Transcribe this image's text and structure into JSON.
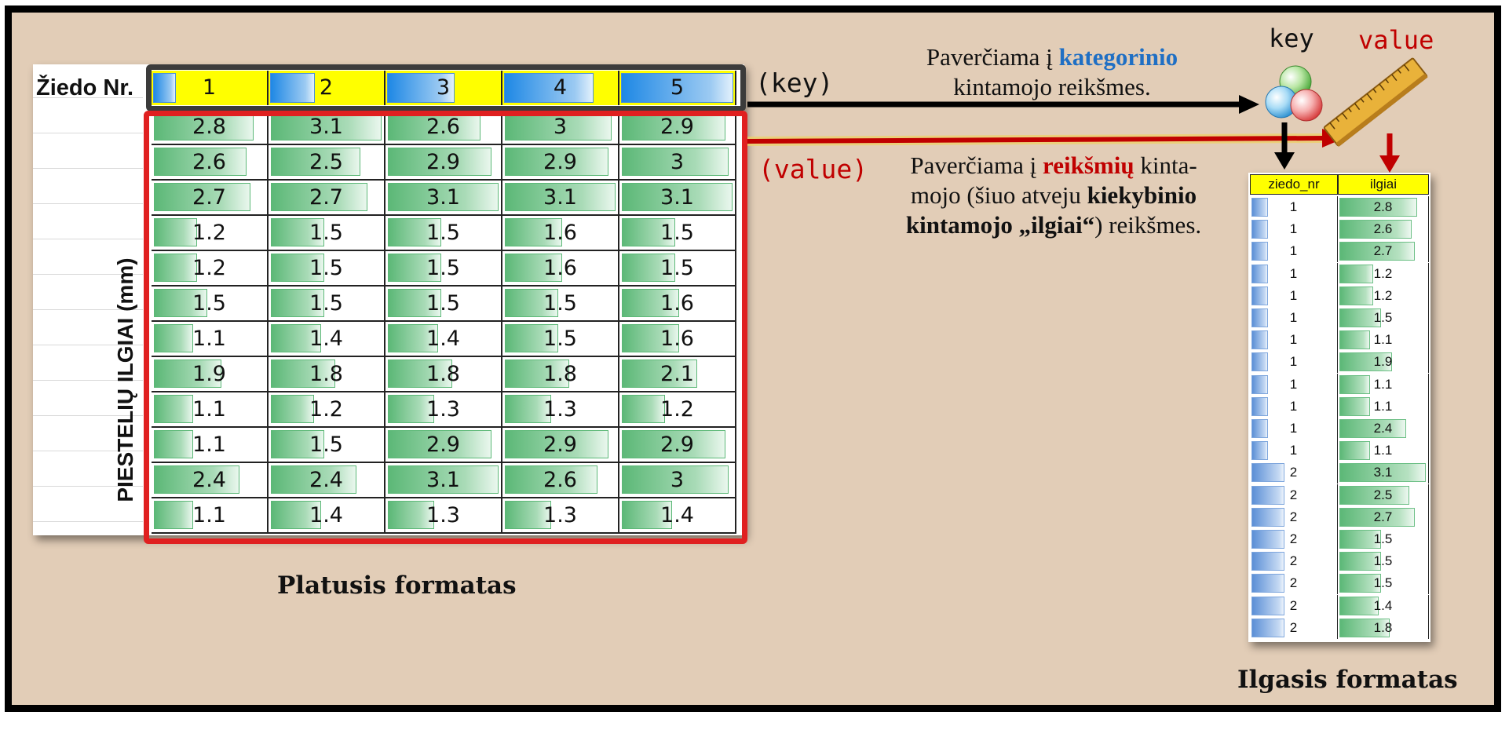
{
  "wide_table": {
    "corner_label": "Žiedo Nr.",
    "row_axis_label": "PIESTELIŲ ILGIAI (mm)",
    "header": [
      "1",
      "2",
      "3",
      "4",
      "5"
    ],
    "header_bar_fraction": [
      0.2,
      0.4,
      0.6,
      0.8,
      1.0
    ],
    "rows": [
      [
        "2.8",
        "3.1",
        "2.6",
        "3",
        "2.9"
      ],
      [
        "2.6",
        "2.5",
        "2.9",
        "2.9",
        "3"
      ],
      [
        "2.7",
        "2.7",
        "3.1",
        "3.1",
        "3.1"
      ],
      [
        "1.2",
        "1.5",
        "1.5",
        "1.6",
        "1.5"
      ],
      [
        "1.2",
        "1.5",
        "1.5",
        "1.6",
        "1.5"
      ],
      [
        "1.5",
        "1.5",
        "1.5",
        "1.5",
        "1.6"
      ],
      [
        "1.1",
        "1.4",
        "1.4",
        "1.5",
        "1.6"
      ],
      [
        "1.9",
        "1.8",
        "1.8",
        "1.8",
        "2.1"
      ],
      [
        "1.1",
        "1.2",
        "1.3",
        "1.3",
        "1.2"
      ],
      [
        "1.1",
        "1.5",
        "2.9",
        "2.9",
        "2.9"
      ],
      [
        "2.4",
        "2.4",
        "3.1",
        "2.6",
        "3"
      ],
      [
        "1.1",
        "1.4",
        "1.3",
        "1.3",
        "1.4"
      ]
    ],
    "caption": "Platusis formatas"
  },
  "labels": {
    "key_paren": "(key)",
    "value_paren": "(value)",
    "key_word": "key",
    "value_word": "value"
  },
  "annotation_top": {
    "line1_pre": "Paverčiama į ",
    "line1_em": "kategorinio",
    "line2": "kintamojo reikšmes."
  },
  "annotation_bottom": {
    "l1_pre": "Paverčiama į ",
    "l1_em": "reikšmių",
    "l1_post": " kinta-",
    "l2_pre": "mojo (šiuo atveju ",
    "l2_bold": "kiekybinio",
    "l3_bold": "kintamojo „ilgiai“",
    "l3_post": ") reikšmes."
  },
  "long_table": {
    "headers": [
      "ziedo_nr",
      "ilgiai"
    ],
    "rows": [
      [
        "1",
        "2.8"
      ],
      [
        "1",
        "2.6"
      ],
      [
        "1",
        "2.7"
      ],
      [
        "1",
        "1.2"
      ],
      [
        "1",
        "1.2"
      ],
      [
        "1",
        "1.5"
      ],
      [
        "1",
        "1.1"
      ],
      [
        "1",
        "1.9"
      ],
      [
        "1",
        "1.1"
      ],
      [
        "1",
        "1.1"
      ],
      [
        "1",
        "2.4"
      ],
      [
        "1",
        "1.1"
      ],
      [
        "2",
        "3.1"
      ],
      [
        "2",
        "2.5"
      ],
      [
        "2",
        "2.7"
      ],
      [
        "2",
        "1.5"
      ],
      [
        "2",
        "1.5"
      ],
      [
        "2",
        "1.5"
      ],
      [
        "2",
        "1.4"
      ],
      [
        "2",
        "1.8"
      ]
    ],
    "caption": "Ilgasis formatas"
  },
  "colors": {
    "background": "#e2cdb7",
    "header_fill": "#ffff00",
    "key_box": "#3b3b3b",
    "value_box": "#e02020",
    "category_text": "#1f6fc4",
    "value_text": "#c00000"
  },
  "icons": {
    "key_icon": "three-colored-spheres-icon",
    "value_icon": "ruler-icon"
  }
}
